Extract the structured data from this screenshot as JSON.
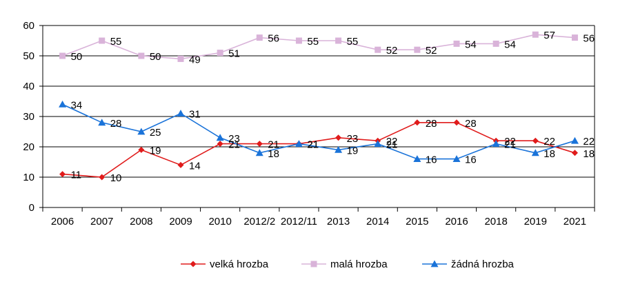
{
  "chart_data": {
    "type": "line",
    "title": "",
    "xlabel": "",
    "ylabel": "",
    "categories": [
      "2006",
      "2007",
      "2008",
      "2009",
      "2010",
      "2012/2",
      "2012/11",
      "2013",
      "2014",
      "2015",
      "2016",
      "2018",
      "2019",
      "2021"
    ],
    "ylim": [
      0,
      60
    ],
    "yticks": [
      0,
      10,
      20,
      30,
      40,
      50,
      60
    ],
    "grid": "horizontal",
    "legend_position": "bottom",
    "series": [
      {
        "name": "velká hrozba",
        "color": "#e01b1b",
        "marker": "diamond",
        "values": [
          11,
          10,
          19,
          14,
          21,
          21,
          21,
          23,
          22,
          28,
          28,
          22,
          22,
          18
        ],
        "labels": [
          "11",
          "10",
          "19",
          "14",
          "21",
          "21",
          "21",
          "23",
          "22",
          "28",
          "28",
          "22",
          "22",
          "18"
        ]
      },
      {
        "name": "malá hrozba",
        "color": "#d9b3d9",
        "marker": "square",
        "values": [
          50,
          55,
          50,
          49,
          51,
          56,
          55,
          55,
          52,
          52,
          54,
          54,
          57,
          56
        ],
        "labels": [
          "50",
          "55",
          "50",
          "49",
          "51",
          "56",
          "55",
          "55",
          "52",
          "52",
          "54",
          "54",
          "57",
          "56"
        ]
      },
      {
        "name": "žádná hrozba",
        "color": "#1a73d9",
        "marker": "triangle",
        "values": [
          34,
          28,
          25,
          31,
          23,
          18,
          21,
          19,
          21,
          16,
          16,
          21,
          18,
          22
        ],
        "labels": [
          "34",
          "28",
          "25",
          "31",
          "23",
          "18",
          "21",
          "19",
          "21",
          "16",
          "16",
          "21",
          "18",
          "22"
        ]
      }
    ]
  }
}
